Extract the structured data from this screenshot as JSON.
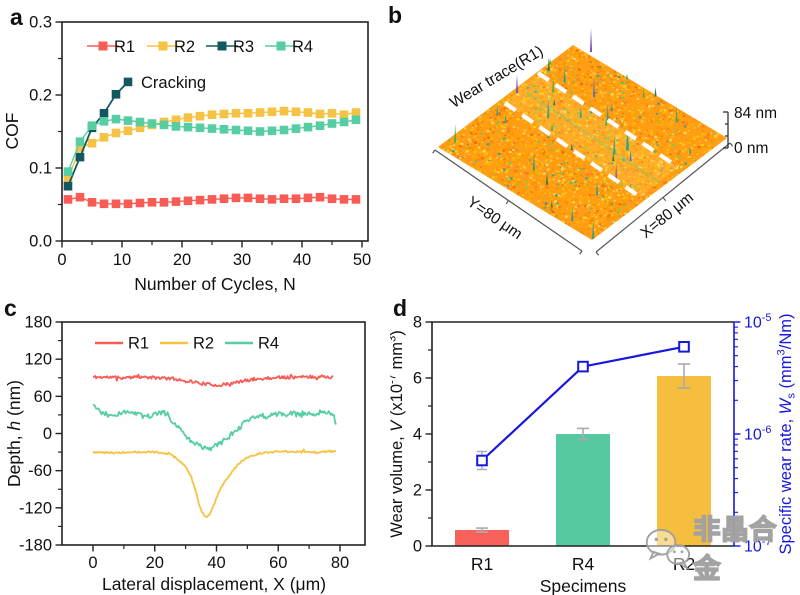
{
  "panels": {
    "a": {
      "label": "a"
    },
    "b": {
      "label": "b"
    },
    "c": {
      "label": "c"
    },
    "d": {
      "label": "d"
    }
  },
  "colors": {
    "r1": "#f85c55",
    "r2": "#f5c243",
    "r3": "#14585f",
    "r4": "#57cda2",
    "blue_axis": "#1717dd",
    "error_gray": "#ababab",
    "frame": "#222222",
    "text": "#111111"
  },
  "watermark": {
    "text": "非晶合金",
    "icon": "wechat-logo"
  },
  "chart_data": [
    {
      "id": "a",
      "type": "scatter",
      "title": "",
      "xlabel": "Number of Cycles, N",
      "ylabel": "COF",
      "xlim": [
        0,
        51
      ],
      "ylim": [
        0,
        0.3
      ],
      "xticks": [
        0,
        10,
        20,
        30,
        40,
        50
      ],
      "yticks": [
        0.0,
        0.1,
        0.2,
        0.3
      ],
      "grid": false,
      "legend_position": "top-inside",
      "annotation": "Cracking",
      "x": [
        1,
        3,
        5,
        7,
        9,
        11,
        13,
        15,
        17,
        19,
        21,
        23,
        25,
        27,
        29,
        31,
        33,
        35,
        37,
        39,
        41,
        43,
        45,
        47,
        49
      ],
      "series": [
        {
          "name": "R1",
          "color": "#f85c55",
          "y": [
            0.057,
            0.06,
            0.053,
            0.051,
            0.051,
            0.051,
            0.052,
            0.053,
            0.053,
            0.054,
            0.055,
            0.056,
            0.057,
            0.058,
            0.059,
            0.059,
            0.058,
            0.057,
            0.058,
            0.058,
            0.059,
            0.06,
            0.058,
            0.057,
            0.057
          ]
        },
        {
          "name": "R2",
          "color": "#f5c243",
          "y": [
            0.085,
            0.128,
            0.134,
            0.142,
            0.148,
            0.151,
            0.155,
            0.159,
            0.163,
            0.166,
            0.169,
            0.171,
            0.173,
            0.174,
            0.175,
            0.175,
            0.176,
            0.177,
            0.178,
            0.177,
            0.176,
            0.174,
            0.175,
            0.173,
            0.176
          ]
        },
        {
          "name": "R3",
          "color": "#14585f",
          "x_own": [
            1,
            3,
            5,
            7,
            9,
            11
          ],
          "y": [
            0.075,
            0.115,
            0.155,
            0.175,
            0.201,
            0.218
          ],
          "note": "Cracking"
        },
        {
          "name": "R4",
          "color": "#57cda2",
          "y": [
            0.095,
            0.136,
            0.158,
            0.164,
            0.167,
            0.165,
            0.163,
            0.161,
            0.159,
            0.157,
            0.156,
            0.155,
            0.154,
            0.153,
            0.152,
            0.151,
            0.15,
            0.151,
            0.152,
            0.154,
            0.156,
            0.158,
            0.161,
            0.163,
            0.166
          ]
        }
      ]
    },
    {
      "id": "b",
      "type": "3d-surface",
      "annotation": "Wear trace(R1)",
      "x_axis_label": "X=80 μm",
      "y_axis_label": "Y=80 μm",
      "z_max_label": "84 nm",
      "z_min_label": "0 nm",
      "palette": [
        "#ffb300",
        "#ffa000",
        "#ff9100",
        "#ffc428",
        "#ffd45a",
        "#f57f17",
        "#ff7a33",
        "#ef6c00",
        "#8bc34a",
        "#3aa68d",
        "#5fbf62"
      ],
      "palette_weights": [
        18,
        16,
        14,
        16,
        10,
        7,
        6,
        5,
        3,
        3,
        2
      ],
      "base_color": "#ff9e14",
      "spike_colors": [
        "#2fa08c",
        "#49ad52",
        "#2e7d46",
        "#4f7ac7",
        "#7a57c0"
      ],
      "description": "3D topography of wear trace on specimen R1; orange-yellow rough surface with green/purple spikes; wear track bounded by two white dashed lines"
    },
    {
      "id": "c",
      "type": "line",
      "xlabel": "Lateral displacement, X (μm)",
      "ylabel_parts": [
        {
          "t": "Depth, "
        },
        {
          "t": "h",
          "i": 1
        },
        {
          "t": " (nm)"
        }
      ],
      "xlim": [
        -10,
        88
      ],
      "ylim": [
        -180,
        180
      ],
      "xticks": [
        0,
        20,
        40,
        60,
        80
      ],
      "yticks": [
        -180,
        -120,
        -60,
        0,
        60,
        120,
        180
      ],
      "grid": false,
      "legend_position": "top-inside",
      "series": [
        {
          "name": "R1",
          "color": "#f85c55",
          "noise": 2.5,
          "points": [
            [
              0,
              91
            ],
            [
              5,
              91
            ],
            [
              10,
              90
            ],
            [
              15,
              91
            ],
            [
              20,
              90
            ],
            [
              25,
              89
            ],
            [
              28,
              87
            ],
            [
              32,
              84
            ],
            [
              35,
              81
            ],
            [
              38,
              79
            ],
            [
              41,
              78
            ],
            [
              44,
              80
            ],
            [
              47,
              83
            ],
            [
              50,
              86
            ],
            [
              54,
              88
            ],
            [
              58,
              90
            ],
            [
              62,
              91
            ],
            [
              66,
              91
            ],
            [
              70,
              91
            ],
            [
              74,
              92
            ],
            [
              78,
              91
            ]
          ]
        },
        {
          "name": "R2",
          "color": "#f5c243",
          "noise": 1.5,
          "points": [
            [
              0,
              -30
            ],
            [
              6,
              -31
            ],
            [
              12,
              -30
            ],
            [
              18,
              -30
            ],
            [
              22,
              -31
            ],
            [
              25,
              -34
            ],
            [
              27,
              -40
            ],
            [
              29,
              -48
            ],
            [
              31,
              -62
            ],
            [
              33,
              -88
            ],
            [
              34,
              -108
            ],
            [
              35,
              -124
            ],
            [
              36,
              -132
            ],
            [
              37,
              -135
            ],
            [
              38,
              -129
            ],
            [
              39,
              -118
            ],
            [
              40,
              -104
            ],
            [
              41,
              -92
            ],
            [
              43,
              -75
            ],
            [
              45,
              -62
            ],
            [
              47,
              -50
            ],
            [
              49,
              -42
            ],
            [
              51,
              -36
            ],
            [
              54,
              -32
            ],
            [
              58,
              -30
            ],
            [
              63,
              -29
            ],
            [
              68,
              -30
            ],
            [
              73,
              -30
            ],
            [
              79,
              -28
            ]
          ]
        },
        {
          "name": "R4",
          "color": "#57cda2",
          "noise": 4,
          "points": [
            [
              0,
              46
            ],
            [
              2,
              36
            ],
            [
              4,
              30
            ],
            [
              6,
              26
            ],
            [
              8,
              32
            ],
            [
              10,
              34
            ],
            [
              12,
              36
            ],
            [
              14,
              33
            ],
            [
              16,
              28
            ],
            [
              18,
              26
            ],
            [
              20,
              32
            ],
            [
              22,
              34
            ],
            [
              24,
              28
            ],
            [
              26,
              18
            ],
            [
              28,
              8
            ],
            [
              30,
              -4
            ],
            [
              32,
              -13
            ],
            [
              34,
              -19
            ],
            [
              36,
              -23
            ],
            [
              38,
              -26
            ],
            [
              40,
              -19
            ],
            [
              42,
              -13
            ],
            [
              44,
              -5
            ],
            [
              46,
              4
            ],
            [
              48,
              12
            ],
            [
              50,
              20
            ],
            [
              52,
              26
            ],
            [
              54,
              30
            ],
            [
              56,
              27
            ],
            [
              58,
              31
            ],
            [
              60,
              33
            ],
            [
              62,
              29
            ],
            [
              64,
              34
            ],
            [
              66,
              31
            ],
            [
              68,
              33
            ],
            [
              70,
              34
            ],
            [
              72,
              32
            ],
            [
              74,
              36
            ],
            [
              76,
              34
            ],
            [
              78,
              28
            ],
            [
              79,
              10
            ]
          ]
        }
      ]
    },
    {
      "id": "d",
      "type": "bar+line",
      "categories": [
        "R1",
        "R4",
        "R2"
      ],
      "xlabel": "Specimens",
      "bar_series": {
        "label_parts": [
          {
            "t": "Wear volume, "
          },
          {
            "t": "V",
            "i": 1
          },
          {
            "t": " (x10"
          },
          {
            "t": "-7",
            "sup": 1
          },
          {
            "t": " mm"
          },
          {
            "t": "3",
            "sup": 1
          },
          {
            "t": ")"
          }
        ],
        "values": [
          0.57,
          4.0,
          6.07
        ],
        "errors": [
          0.07,
          0.2,
          0.43
        ],
        "colors": [
          "#f8625a",
          "#57c9a0",
          "#f5be3f"
        ],
        "ylim": [
          0,
          8
        ],
        "yticks": [
          0,
          2,
          4,
          6,
          8
        ]
      },
      "line_series": {
        "label_parts": [
          {
            "t": "Specific wear rate, "
          },
          {
            "t": "W",
            "i": 1
          },
          {
            "t": "s",
            "sub": 1
          },
          {
            "t": " (mm"
          },
          {
            "t": "3",
            "sup": 1
          },
          {
            "t": "/Nm)"
          }
        ],
        "values": [
          5.8e-07,
          4e-06,
          6e-06
        ],
        "marker_errors_px": [
          9,
          0,
          0
        ],
        "color": "#1717dd",
        "scale": "log",
        "ylim": [
          1e-07,
          1e-05
        ],
        "tick_exponents": [
          -5,
          -6,
          -7
        ],
        "marker": "open-square"
      }
    }
  ]
}
